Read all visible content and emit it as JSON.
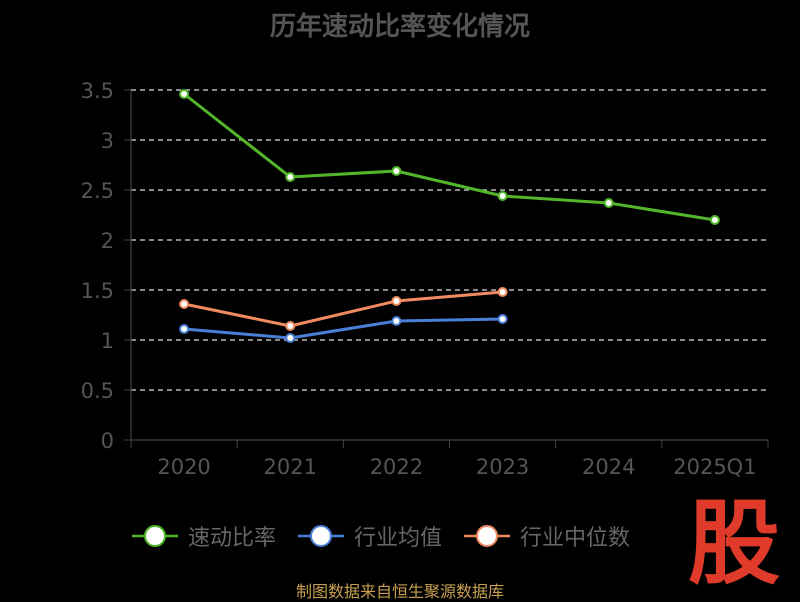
{
  "chart_data": {
    "type": "line",
    "title": "历年速动比率变化情况",
    "categories": [
      "2020",
      "2021",
      "2022",
      "2023",
      "2024",
      "2025Q1"
    ],
    "ylim": [
      0,
      3.5
    ],
    "yticks": [
      "0",
      "0.5",
      "1",
      "1.5",
      "2",
      "2.5",
      "3",
      "3.5"
    ],
    "grid": true,
    "legend_position": "bottom",
    "series": [
      {
        "name": "速动比率",
        "color": "#52b52a",
        "values": [
          3.46,
          2.63,
          2.69,
          2.44,
          2.37,
          2.2
        ]
      },
      {
        "name": "行业均值",
        "color": "#4a7fd8",
        "values": [
          1.11,
          1.02,
          1.19,
          1.21,
          null,
          null
        ]
      },
      {
        "name": "行业中位数",
        "color": "#f08a60",
        "values": [
          1.36,
          1.14,
          1.39,
          1.48,
          null,
          null
        ]
      }
    ]
  },
  "footer": "制图数据来自恒生聚源数据库",
  "logo_text": "股"
}
